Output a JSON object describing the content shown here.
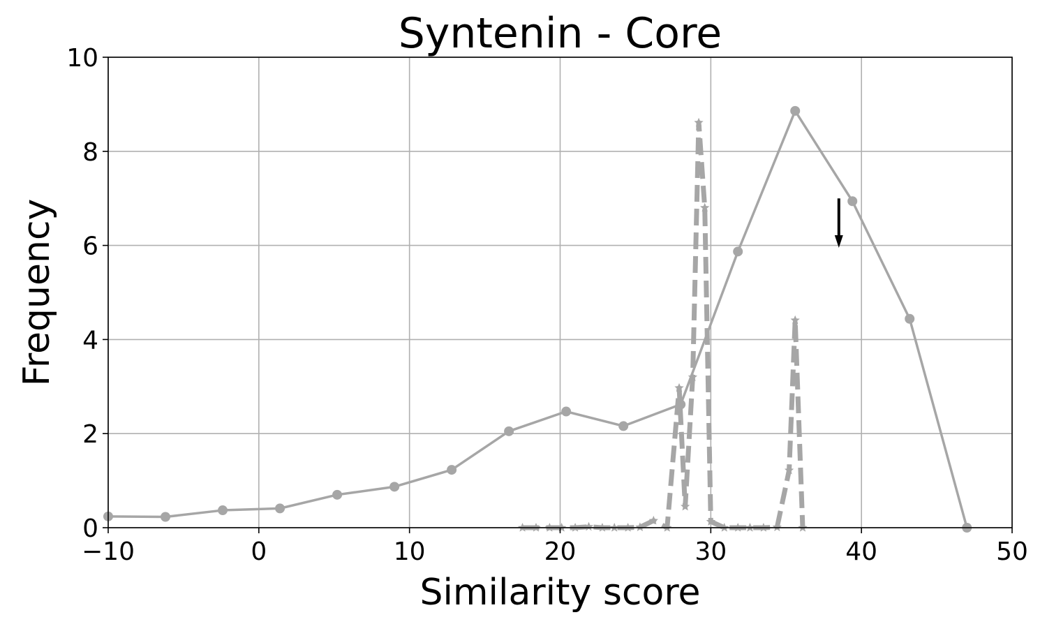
{
  "chart_data": {
    "type": "line",
    "title": "Syntenin  - Core",
    "xlabel": "Similarity score",
    "ylabel": "Frequency",
    "xlim": [
      -10,
      50
    ],
    "ylim": [
      0,
      10
    ],
    "xticks": [
      "−10",
      "0",
      "10",
      "20",
      "30",
      "40",
      "50"
    ],
    "xtick_values": [
      -10,
      0,
      10,
      20,
      30,
      40,
      50
    ],
    "yticks": [
      "0",
      "2",
      "4",
      "6",
      "8",
      "10"
    ],
    "ytick_values": [
      0,
      2,
      4,
      6,
      8,
      10
    ],
    "grid": true,
    "series": [
      {
        "style": "solid",
        "marker": "circle",
        "color": "#a6a6a6",
        "x": [
          -10.0,
          -6.2,
          -2.4,
          1.4,
          5.2,
          9.0,
          12.8,
          16.6,
          20.4,
          24.2,
          28.0,
          31.8,
          35.6,
          39.4,
          43.2,
          47.0
        ],
        "y": [
          0.24,
          0.23,
          0.37,
          0.41,
          0.7,
          0.87,
          1.23,
          2.05,
          2.47,
          2.16,
          2.62,
          5.87,
          8.86,
          6.94,
          4.44,
          0.0
        ]
      },
      {
        "style": "dashed",
        "marker": "star",
        "color": "#a6a6a6",
        "x": [
          17.5,
          18.4,
          19.3,
          20.1,
          21.0,
          21.9,
          22.8,
          23.6,
          24.5,
          25.3,
          26.2,
          27.1,
          27.9,
          28.3,
          28.8,
          29.2,
          29.6,
          30.0,
          30.9,
          31.8,
          32.6,
          33.5,
          34.4,
          35.2,
          35.6,
          36.1
        ],
        "y": [
          0.0,
          0.0,
          0.0,
          0.0,
          0.0,
          0.02,
          0.0,
          0.0,
          0.0,
          0.01,
          0.15,
          0.0,
          2.97,
          0.45,
          3.2,
          8.61,
          6.8,
          0.13,
          0.0,
          0.0,
          0.0,
          0.0,
          0.01,
          1.22,
          4.41,
          0.0
        ]
      }
    ],
    "annotations": [
      {
        "type": "arrow",
        "x": 38.5,
        "y_start": 7.0,
        "y_end": 5.95,
        "color": "#000000"
      }
    ]
  }
}
